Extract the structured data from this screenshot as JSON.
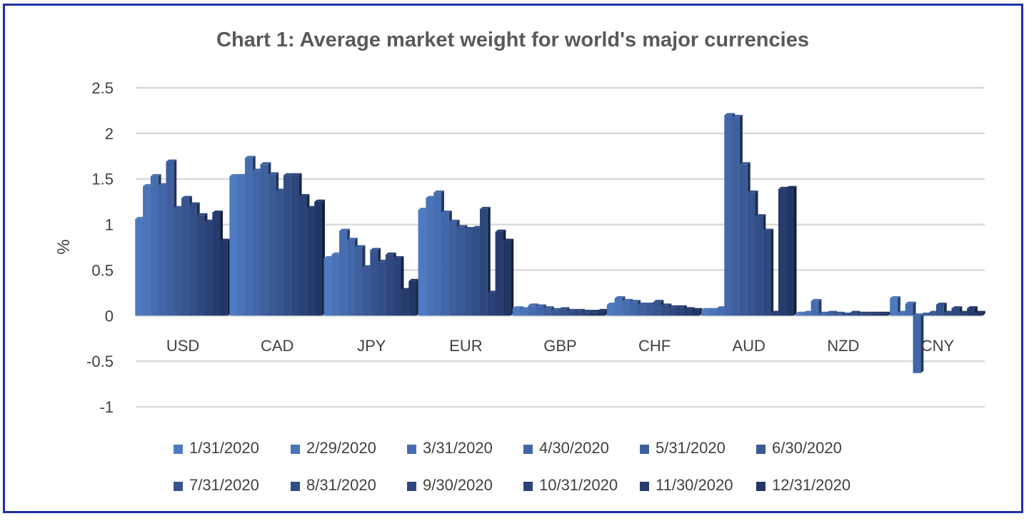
{
  "chart_data": {
    "type": "bar",
    "title": "Chart 1: Average market weight for world's major currencies",
    "xlabel": "",
    "ylabel": "%",
    "ylim": [
      -1,
      2.5
    ],
    "yticks": [
      "2.5",
      "2",
      "1.5",
      "1",
      "0.5",
      "0",
      "-0.5",
      "-1"
    ],
    "grid": true,
    "legend_position": "bottom",
    "categories": [
      "USD",
      "CAD",
      "JPY",
      "EUR",
      "GBP",
      "CHF",
      "AUD",
      "NZD",
      "CNY"
    ],
    "series": [
      {
        "name": "1/31/2020",
        "values": [
          1.06,
          1.53,
          0.63,
          1.16,
          0.08,
          0.12,
          0.06,
          0.02,
          0.19
        ]
      },
      {
        "name": "2/29/2020",
        "values": [
          1.42,
          1.53,
          0.67,
          1.29,
          0.07,
          0.19,
          0.06,
          0.03,
          0.03
        ]
      },
      {
        "name": "3/31/2020",
        "values": [
          1.53,
          1.73,
          0.93,
          1.35,
          0.11,
          0.16,
          0.08,
          0.16,
          0.13
        ]
      },
      {
        "name": "4/30/2020",
        "values": [
          1.43,
          1.59,
          0.83,
          1.13,
          0.1,
          0.15,
          2.2,
          0.02,
          -0.63
        ]
      },
      {
        "name": "5/31/2020",
        "values": [
          1.69,
          1.66,
          0.75,
          1.03,
          0.08,
          0.12,
          2.18,
          0.03,
          0.01
        ]
      },
      {
        "name": "6/30/2020",
        "values": [
          1.18,
          1.55,
          0.53,
          0.97,
          0.06,
          0.12,
          1.66,
          0.02,
          0.03
        ]
      },
      {
        "name": "7/31/2020",
        "values": [
          1.29,
          1.37,
          0.72,
          0.95,
          0.07,
          0.15,
          1.35,
          0.01,
          0.12
        ]
      },
      {
        "name": "8/31/2020",
        "values": [
          1.22,
          1.54,
          0.59,
          0.96,
          0.05,
          0.11,
          1.09,
          0.03,
          0.03
        ]
      },
      {
        "name": "9/30/2020",
        "values": [
          1.1,
          1.54,
          0.67,
          1.17,
          0.05,
          0.09,
          0.93,
          0.02,
          0.08
        ]
      },
      {
        "name": "10/31/2020",
        "values": [
          1.03,
          1.31,
          0.63,
          0.25,
          0.04,
          0.09,
          0.03,
          0.02,
          0.03
        ]
      },
      {
        "name": "11/30/2020",
        "values": [
          1.13,
          1.18,
          0.28,
          0.92,
          0.04,
          0.07,
          1.39,
          0.02,
          0.08
        ]
      },
      {
        "name": "12/31/2020",
        "values": [
          0.82,
          1.25,
          0.38,
          0.82,
          0.05,
          0.06,
          1.4,
          0.02,
          0.03
        ]
      }
    ],
    "colors": [
      "#4e7ac1",
      "#4a73b8",
      "#466db0",
      "#4266a7",
      "#3e609f",
      "#3a5a96",
      "#36548e",
      "#324e86",
      "#2e487e",
      "#2a4276",
      "#263c6e",
      "#223666"
    ]
  }
}
